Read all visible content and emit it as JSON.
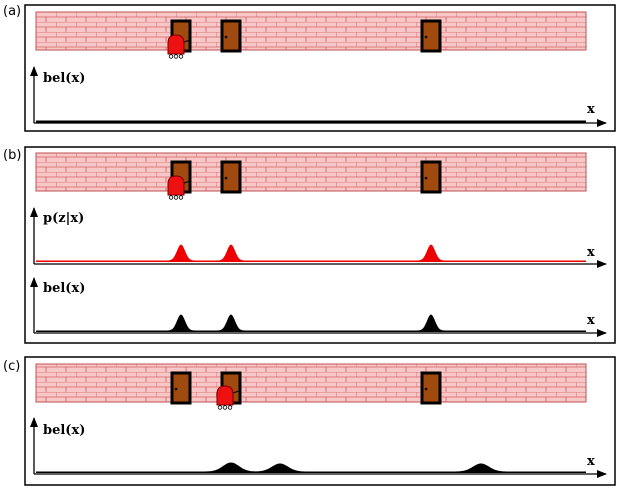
{
  "panels": [
    {
      "tag": "(a)",
      "wall": {
        "doors": [
          1,
          2,
          3
        ],
        "robot_position": "door-1"
      },
      "plots": [
        {
          "ylabel": "bel(x)",
          "xlabel": "x",
          "color": "#000000",
          "shape": "uniform",
          "peaks": []
        }
      ]
    },
    {
      "tag": "(b)",
      "wall": {
        "doors": [
          1,
          2,
          3
        ],
        "robot_position": "door-1"
      },
      "plots": [
        {
          "ylabel": "p(z|x)",
          "xlabel": "x",
          "color": "#ee0000",
          "shape": "peaks-at-doors",
          "peaks": [
            1,
            2,
            3
          ]
        },
        {
          "ylabel": "bel(x)",
          "xlabel": "x",
          "color": "#000000",
          "shape": "peaks-at-doors",
          "peaks": [
            1,
            2,
            3
          ]
        }
      ]
    },
    {
      "tag": "(c)",
      "wall": {
        "doors": [
          1,
          2,
          3
        ],
        "robot_position": "door-2"
      },
      "plots": [
        {
          "ylabel": "bel(x)",
          "xlabel": "x",
          "color": "#000000",
          "shape": "shifted-flattened-peaks",
          "peaks": [
            2,
            "between-2-and-3",
            "after-3"
          ]
        }
      ]
    }
  ],
  "colors": {
    "wall_fill": "#f8c8c8",
    "mortar": "#d06060",
    "door_fill": "#a04a10",
    "door_frame": "#000000",
    "robot": "#ee1111",
    "axis": "#000000"
  }
}
